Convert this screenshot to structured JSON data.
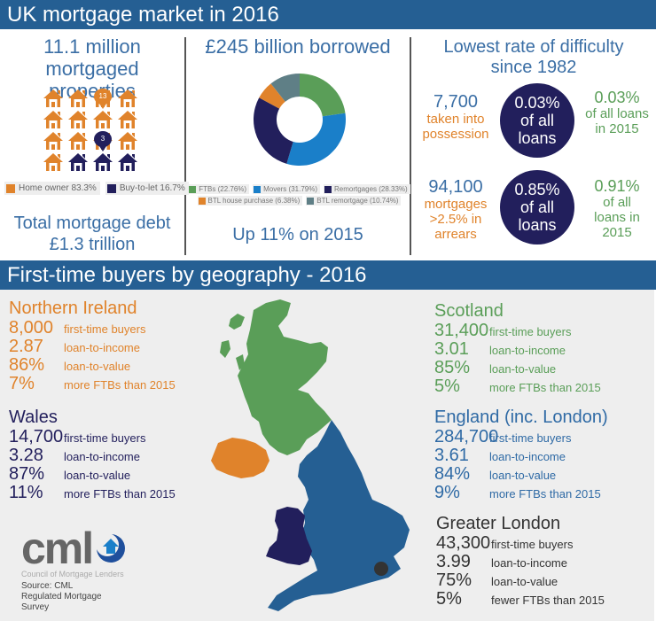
{
  "banners": {
    "top": "UK mortgage market in 2016",
    "bottom": "First-time buyers by geography - 2016"
  },
  "properties": {
    "title_line1": "11.1 million",
    "title_line2": "mortgaged properties",
    "house_grid": {
      "total": 16,
      "home_owner_count": 13,
      "buy_to_let_count": 3
    },
    "legend": [
      {
        "label": "Home owner 83.3%",
        "color": "#e0832b"
      },
      {
        "label": "Buy-to-let 16.7%",
        "color": "#221f5c"
      }
    ],
    "debt_line1": "Total mortgage debt",
    "debt_line2": "£1.3 trillion"
  },
  "borrowing": {
    "title": "£245 billion borrowed",
    "subtitle": "Up 11% on 2015",
    "legend": [
      {
        "label": "FTBs (22.76%)",
        "color": "#5a9e58"
      },
      {
        "label": "Movers (31.79%)",
        "color": "#1a7fc9"
      },
      {
        "label": "Remortgages (28.33%)",
        "color": "#221f5c"
      },
      {
        "label": "BTL house purchase (6.38%)",
        "color": "#e0832b"
      },
      {
        "label": "BTL remortgage (10.74%)",
        "color": "#5f7f86"
      }
    ]
  },
  "chart_data": {
    "type": "pie",
    "title": "£245 billion borrowed",
    "donut": true,
    "categories": [
      "FTBs",
      "Movers",
      "Remortgages",
      "BTL house purchase",
      "BTL remortgage"
    ],
    "values": [
      22.76,
      31.79,
      28.33,
      6.38,
      10.74
    ],
    "colors": [
      "#5a9e58",
      "#1a7fc9",
      "#221f5c",
      "#e0832b",
      "#5f7f86"
    ],
    "legend_position": "bottom"
  },
  "difficulty": {
    "title_line1": "Lowest rate of difficulty",
    "title_line2": "since 1982",
    "rows": [
      {
        "num": "7,700",
        "desc": [
          "taken into",
          "possession"
        ],
        "circle": [
          "0.03%",
          "of all",
          "loans"
        ],
        "compare_num": "0.03%",
        "compare_desc": [
          "of all loans",
          "in 2015"
        ]
      },
      {
        "num": "94,100",
        "desc": [
          "mortgages",
          ">2.5% in",
          "arrears"
        ],
        "circle": [
          "0.85%",
          "of all",
          "loans"
        ],
        "compare_num": "0.91%",
        "compare_desc": [
          "of all",
          "loans in",
          "2015"
        ]
      }
    ]
  },
  "regions": {
    "northern_ireland": {
      "name": "Northern Ireland",
      "rows": [
        {
          "val": "8,000",
          "lbl": "first-time buyers"
        },
        {
          "val": "2.87",
          "lbl": "loan-to-income"
        },
        {
          "val": "86%",
          "lbl": "loan-to-value"
        },
        {
          "val": "7%",
          "lbl": "more FTBs than 2015"
        }
      ]
    },
    "wales": {
      "name": "Wales",
      "rows": [
        {
          "val": "14,700",
          "lbl": "first-time buyers"
        },
        {
          "val": "3.28",
          "lbl": "loan-to-income"
        },
        {
          "val": "87%",
          "lbl": "loan-to-value"
        },
        {
          "val": "11%",
          "lbl": "more FTBs than 2015"
        }
      ]
    },
    "scotland": {
      "name": "Scotland",
      "rows": [
        {
          "val": "31,400",
          "lbl": "first-time buyers"
        },
        {
          "val": "3.01",
          "lbl": "loan-to-income"
        },
        {
          "val": "85%",
          "lbl": "loan-to-value"
        },
        {
          "val": "5%",
          "lbl": "more FTBs than 2015"
        }
      ]
    },
    "england": {
      "name": "England (inc. London)",
      "rows": [
        {
          "val": "284,700",
          "lbl": "first-time buyers"
        },
        {
          "val": "3.61",
          "lbl": "loan-to-income"
        },
        {
          "val": "84%",
          "lbl": "loan-to-value"
        },
        {
          "val": "9%",
          "lbl": "more FTBs than 2015"
        }
      ]
    },
    "london": {
      "name": "Greater London",
      "rows": [
        {
          "val": "43,300",
          "lbl": "first-time buyers"
        },
        {
          "val": "3.99",
          "lbl": "loan-to-income"
        },
        {
          "val": "75%",
          "lbl": "loan-to-value"
        },
        {
          "val": "5%",
          "lbl": "fewer FTBs than 2015"
        }
      ]
    }
  },
  "logo": {
    "text": "cml",
    "subtitle": "Council of Mortgage Lenders"
  },
  "source": {
    "line1": "Source: CML",
    "line2": "Regulated Mortgage",
    "line3": "Survey"
  },
  "colors": {
    "banner": "#255f93",
    "orange": "#e0832b",
    "navy": "#221f5c",
    "green": "#5a9e58",
    "blue": "#2f6aa5",
    "movers_blue": "#1a7fc9",
    "slate": "#5f7f86",
    "panel_bg": "#eeeeee"
  }
}
